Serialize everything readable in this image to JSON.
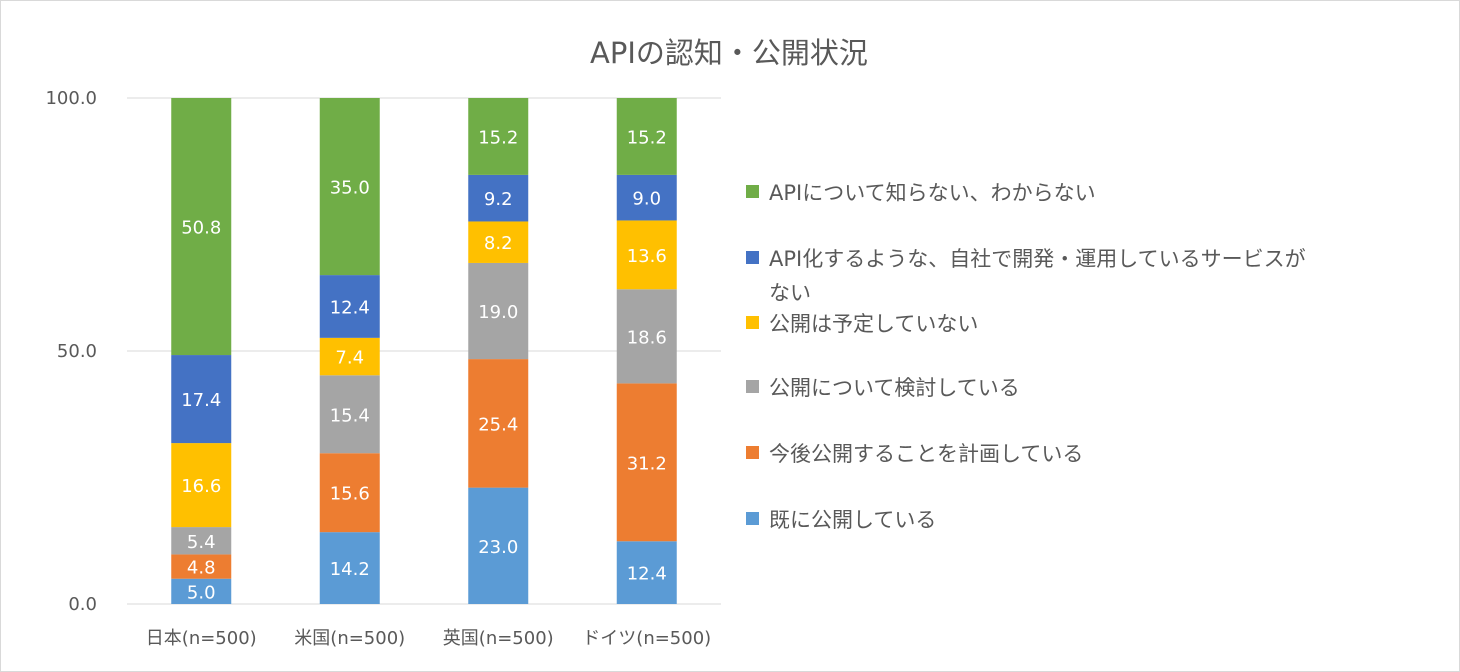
{
  "chart_data": {
    "type": "bar",
    "stacked": true,
    "title": "APIの認知・公開状況",
    "xlabel": "",
    "ylabel": "",
    "ylim": [
      0,
      100
    ],
    "yticks": [
      "0.0",
      "50.0",
      "100.0"
    ],
    "grid": true,
    "legend_position": "right",
    "categories": [
      "日本(n=500)",
      "米国(n=500)",
      "英国(n=500)",
      "ドイツ(n=500)"
    ],
    "series": [
      {
        "name": "既に公開している",
        "color": "#5b9bd5",
        "label_color": "#ffffff",
        "values": [
          5.0,
          14.2,
          23.0,
          12.4
        ],
        "labels": [
          "5.0",
          "14.2",
          "23.0",
          "12.4"
        ]
      },
      {
        "name": "今後公開することを計画している",
        "color": "#ed7d31",
        "label_color": "#ffffff",
        "values": [
          4.8,
          15.6,
          25.4,
          31.2
        ],
        "labels": [
          "4.8",
          "15.6",
          "25.4",
          "31.2"
        ]
      },
      {
        "name": "公開について検討している",
        "color": "#a5a5a5",
        "label_color": "#ffffff",
        "values": [
          5.4,
          15.4,
          19.0,
          18.6
        ],
        "labels": [
          "5.4",
          "15.4",
          "19.0",
          "18.6"
        ]
      },
      {
        "name": "公開は予定していない",
        "color": "#ffc000",
        "label_color": "#ffffff",
        "values": [
          16.6,
          7.4,
          8.2,
          13.6
        ],
        "labels": [
          "16.6",
          "7.4",
          "8.2",
          "13.6"
        ]
      },
      {
        "name": "API化するような、自社で開発・運用しているサービスがない",
        "color": "#4472c4",
        "label_color": "#ffffff",
        "values": [
          17.4,
          12.4,
          9.2,
          9.0
        ],
        "labels": [
          "17.4",
          "12.4",
          "9.2",
          "9.0"
        ]
      },
      {
        "name": "APIについて知らない、わからない",
        "color": "#70ad47",
        "label_color": "#ffffff",
        "values": [
          50.8,
          35.0,
          15.2,
          15.2
        ],
        "labels": [
          "50.8",
          "35.0",
          "15.2",
          "15.2"
        ]
      }
    ],
    "legend_lines": [
      [
        "APIについて知らない、わからない"
      ],
      [
        "API化するような、自社で開発・運用しているサービスが",
        "ない"
      ],
      [
        "公開は予定していない"
      ],
      [
        "公開について検討している"
      ],
      [
        "今後公開することを計画している"
      ],
      [
        "既に公開している"
      ]
    ]
  }
}
